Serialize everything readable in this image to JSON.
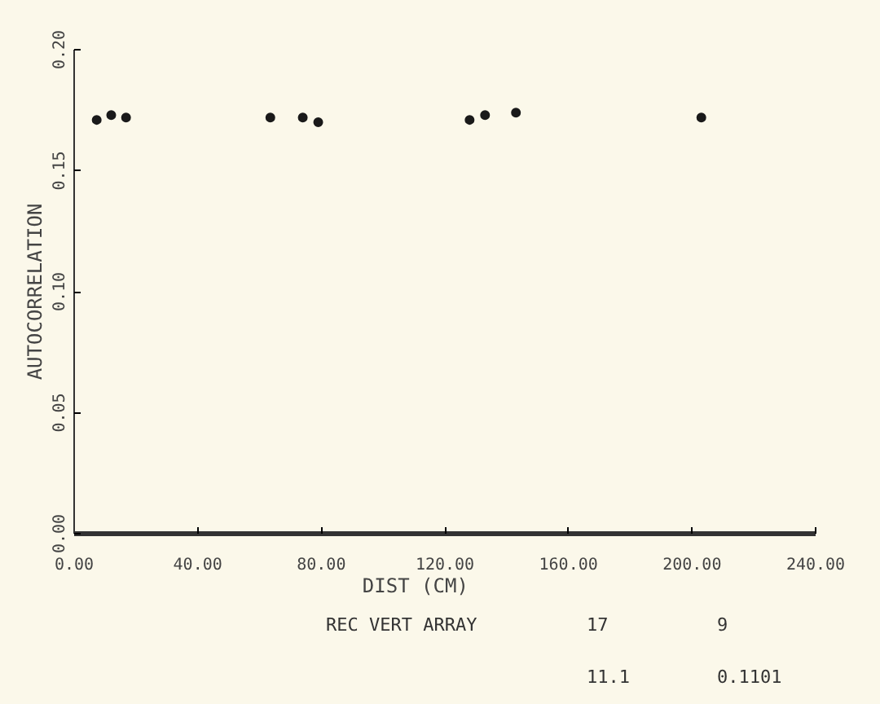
{
  "chart_data": {
    "type": "scatter",
    "xlabel": "DIST      (CM)",
    "ylabel": "AUTOCORRELATION",
    "x": [
      7.3,
      12,
      16.8,
      63.5,
      74,
      79,
      128,
      133,
      143,
      203
    ],
    "series": [
      {
        "color": "#1a1a1a",
        "values": [
          0.171,
          0.173,
          0.172,
          0.172,
          0.172,
          0.17,
          0.171,
          0.173,
          0.174,
          0.172
        ]
      }
    ],
    "xlim": [
      0,
      240
    ],
    "ylim": [
      0,
      0.2
    ],
    "xticks": [
      {
        "value": 0,
        "label": "0.00"
      },
      {
        "value": 40,
        "label": "40.00"
      },
      {
        "value": 80,
        "label": "80.00"
      },
      {
        "value": 120,
        "label": "120.00"
      },
      {
        "value": 160,
        "label": "160.00"
      },
      {
        "value": 200,
        "label": "200.00"
      },
      {
        "value": 240,
        "label": "240.00"
      }
    ],
    "yticks": [
      {
        "value": 0,
        "label": "0.00"
      },
      {
        "value": 0.05,
        "label": "0.05"
      },
      {
        "value": 0.1,
        "label": "0.10"
      },
      {
        "value": 0.15,
        "label": "0.15"
      },
      {
        "value": 0.2,
        "label": "0.20"
      }
    ],
    "annotations": [
      "REC VERT ARRAY",
      "17",
      "9",
      "11.1",
      "0.1101"
    ],
    "grid": false,
    "marker": "circle"
  }
}
